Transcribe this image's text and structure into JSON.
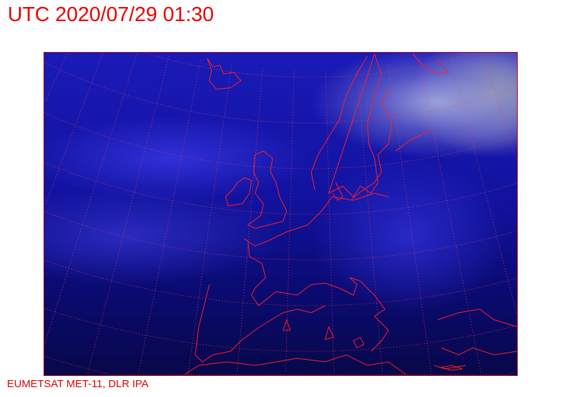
{
  "header": {
    "title": "UTC 2020/07/29 01:30"
  },
  "footer": {
    "credit": "EUMETSAT MET-11, DLR IPA"
  },
  "map": {
    "type": "satellite-image",
    "region": "Europe",
    "coastline_color": "#ff2020",
    "graticule_color": "#ff4040",
    "graticule_style": "dotted"
  }
}
